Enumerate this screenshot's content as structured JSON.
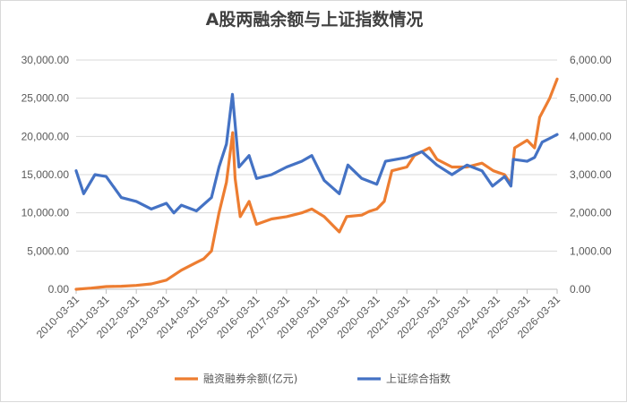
{
  "chart_data": {
    "type": "line",
    "title": "A股两融余额与上证指数情况",
    "x_ticks": [
      "2010-03-31",
      "2011-03-31",
      "2012-03-31",
      "2013-03-31",
      "2014-03-31",
      "2015-03-31",
      "2016-03-31",
      "2017-03-31",
      "2018-03-31",
      "2019-03-31",
      "2020-03-31",
      "2021-03-31",
      "2022-03-31",
      "2023-03-31",
      "2024-03-31",
      "2025-03-31",
      "2026-03-31"
    ],
    "y_left": {
      "min": 0,
      "max": 30000,
      "ticks": [
        "0.00",
        "5,000.00",
        "10,000.00",
        "15,000.00",
        "20,000.00",
        "25,000.00",
        "30,000.00"
      ]
    },
    "y_right": {
      "min": 0,
      "max": 6000,
      "ticks": [
        "0.00",
        "1,000.00",
        "2,000.00",
        "3,000.00",
        "4,000.00",
        "5,000.00",
        "6,000.00"
      ]
    },
    "grid": true,
    "legend_position": "bottom",
    "series": [
      {
        "name": "融资融券余额(亿元)",
        "axis": "left",
        "color": "#ED7D31",
        "points": [
          [
            "2010-03-31",
            0
          ],
          [
            "2010-09-30",
            150
          ],
          [
            "2011-03-31",
            350
          ],
          [
            "2011-09-30",
            400
          ],
          [
            "2012-03-31",
            500
          ],
          [
            "2012-09-30",
            700
          ],
          [
            "2013-03-31",
            1200
          ],
          [
            "2013-09-30",
            2500
          ],
          [
            "2014-03-31",
            3500
          ],
          [
            "2014-06-30",
            4000
          ],
          [
            "2014-09-30",
            5000
          ],
          [
            "2014-12-31",
            10000
          ],
          [
            "2015-03-31",
            14000
          ],
          [
            "2015-06-15",
            20500
          ],
          [
            "2015-07-15",
            14500
          ],
          [
            "2015-09-15",
            9500
          ],
          [
            "2015-12-31",
            11500
          ],
          [
            "2016-03-31",
            8500
          ],
          [
            "2016-09-30",
            9200
          ],
          [
            "2017-03-31",
            9500
          ],
          [
            "2017-09-30",
            10000
          ],
          [
            "2018-01-31",
            10500
          ],
          [
            "2018-06-30",
            9500
          ],
          [
            "2018-12-31",
            7500
          ],
          [
            "2019-03-31",
            9500
          ],
          [
            "2019-09-30",
            9700
          ],
          [
            "2019-12-31",
            10200
          ],
          [
            "2020-03-31",
            10500
          ],
          [
            "2020-06-30",
            11500
          ],
          [
            "2020-09-30",
            15500
          ],
          [
            "2021-03-31",
            16000
          ],
          [
            "2021-06-30",
            17500
          ],
          [
            "2021-12-31",
            18500
          ],
          [
            "2022-03-31",
            17000
          ],
          [
            "2022-09-30",
            16000
          ],
          [
            "2023-03-31",
            16000
          ],
          [
            "2023-09-30",
            16500
          ],
          [
            "2024-02-15",
            15500
          ],
          [
            "2024-06-30",
            15000
          ],
          [
            "2024-09-15",
            13800
          ],
          [
            "2024-10-31",
            18500
          ],
          [
            "2025-03-31",
            19500
          ],
          [
            "2025-06-30",
            18500
          ],
          [
            "2025-08-31",
            22500
          ],
          [
            "2025-12-31",
            25000
          ],
          [
            "2026-03-31",
            27500
          ]
        ]
      },
      {
        "name": "上证综合指数",
        "axis": "right",
        "color": "#4472C4",
        "points": [
          [
            "2010-03-31",
            3100
          ],
          [
            "2010-06-30",
            2500
          ],
          [
            "2010-11-15",
            3000
          ],
          [
            "2011-03-31",
            2950
          ],
          [
            "2011-09-30",
            2400
          ],
          [
            "2012-03-31",
            2300
          ],
          [
            "2012-09-30",
            2100
          ],
          [
            "2013-03-31",
            2250
          ],
          [
            "2013-06-30",
            2000
          ],
          [
            "2013-09-30",
            2200
          ],
          [
            "2014-03-31",
            2050
          ],
          [
            "2014-09-30",
            2400
          ],
          [
            "2014-12-31",
            3200
          ],
          [
            "2015-03-31",
            3800
          ],
          [
            "2015-06-12",
            5100
          ],
          [
            "2015-08-31",
            3200
          ],
          [
            "2015-12-31",
            3500
          ],
          [
            "2016-03-31",
            2900
          ],
          [
            "2016-09-30",
            3000
          ],
          [
            "2017-03-31",
            3200
          ],
          [
            "2017-09-30",
            3350
          ],
          [
            "2018-01-31",
            3500
          ],
          [
            "2018-06-30",
            2850
          ],
          [
            "2018-12-31",
            2500
          ],
          [
            "2019-04-15",
            3250
          ],
          [
            "2019-09-30",
            2900
          ],
          [
            "2020-03-31",
            2750
          ],
          [
            "2020-07-15",
            3350
          ],
          [
            "2021-03-31",
            3450
          ],
          [
            "2021-09-30",
            3600
          ],
          [
            "2022-03-31",
            3250
          ],
          [
            "2022-09-30",
            3000
          ],
          [
            "2023-03-31",
            3250
          ],
          [
            "2023-09-30",
            3100
          ],
          [
            "2024-02-05",
            2700
          ],
          [
            "2024-06-30",
            2950
          ],
          [
            "2024-09-15",
            2700
          ],
          [
            "2024-10-15",
            3400
          ],
          [
            "2025-03-31",
            3350
          ],
          [
            "2025-06-30",
            3450
          ],
          [
            "2025-09-30",
            3850
          ],
          [
            "2025-12-31",
            3950
          ],
          [
            "2026-03-31",
            4050
          ]
        ]
      }
    ]
  }
}
